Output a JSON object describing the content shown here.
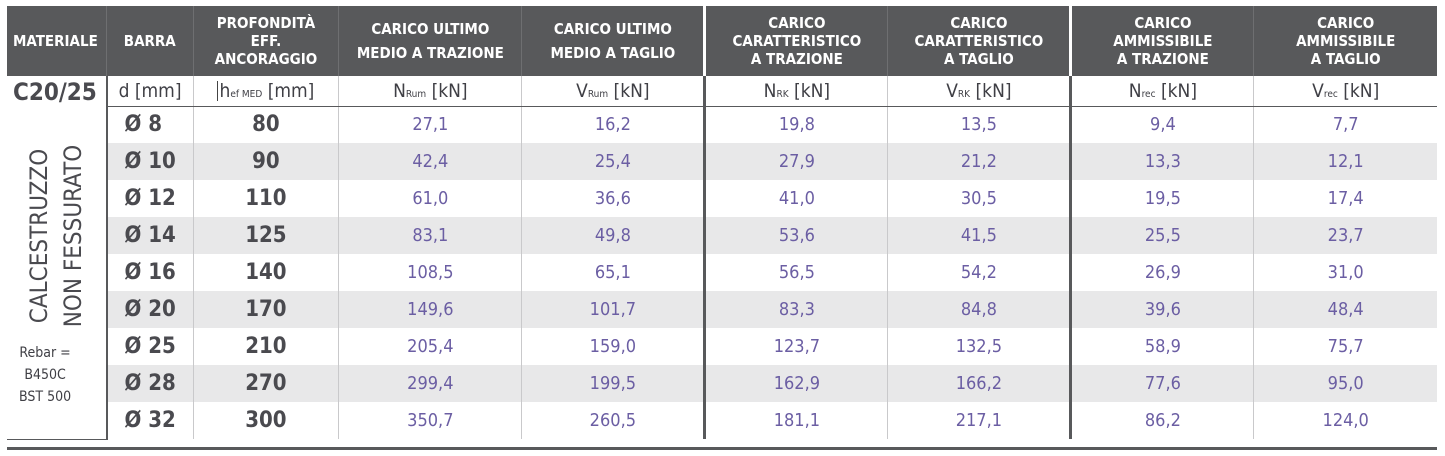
{
  "headers": {
    "materiale": "MATERIALE",
    "barra": "BARRA",
    "profondita": [
      "PROFONDITÀ",
      "EFF. ANCORAGGIO"
    ],
    "nrum": [
      "CARICO ULTIMO",
      "MEDIO A TRAZIONE"
    ],
    "vrum": [
      "CARICO ULTIMO",
      "MEDIO A TAGLIO"
    ],
    "nrk": [
      "CARICO",
      "CARATTERISTICO",
      "A TRAZIONE"
    ],
    "vrk": [
      "CARICO",
      "CARATTERISTICO",
      "A TAGLIO"
    ],
    "nrec": [
      "CARICO",
      "AMMISSIBILE",
      "A TRAZIONE"
    ],
    "vrec": [
      "CARICO",
      "AMMISSIBILE",
      "A TAGLIO"
    ]
  },
  "units": {
    "barra": "d [mm]",
    "prof": {
      "main": "h",
      "sub": "ef MED",
      "unit": " [mm]"
    },
    "nrum": {
      "main": "N",
      "sub": "Rum",
      "unit": " [kN]"
    },
    "vrum": {
      "main": "V",
      "sub": "Rum",
      "unit": " [kN]"
    },
    "nrk": {
      "main": "N",
      "sub": "RK",
      "unit": " [kN]"
    },
    "vrk": {
      "main": "V",
      "sub": "RK",
      "unit": " [kN]"
    },
    "nrec": {
      "main": "N",
      "sub": "rec",
      "unit": " [kN]"
    },
    "vrec": {
      "main": "V",
      "sub": "rec",
      "unit": " [kN]"
    }
  },
  "material": {
    "class": "C20/25",
    "vertical": [
      "CALCESTRUZZO",
      "NON FESSURATO"
    ],
    "rebar": [
      "Rebar =",
      "B450C",
      "BST 500"
    ]
  },
  "rows": [
    {
      "bar": "Ø 8",
      "prof": "80",
      "nrum": "27,1",
      "vrum": "16,2",
      "nrk": "19,8",
      "vrk": "13,5",
      "nrec": "9,4",
      "vrec": "7,7"
    },
    {
      "bar": "Ø 10",
      "prof": "90",
      "nrum": "42,4",
      "vrum": "25,4",
      "nrk": "27,9",
      "vrk": "21,2",
      "nrec": "13,3",
      "vrec": "12,1"
    },
    {
      "bar": "Ø 12",
      "prof": "110",
      "nrum": "61,0",
      "vrum": "36,6",
      "nrk": "41,0",
      "vrk": "30,5",
      "nrec": "19,5",
      "vrec": "17,4"
    },
    {
      "bar": "Ø 14",
      "prof": "125",
      "nrum": "83,1",
      "vrum": "49,8",
      "nrk": "53,6",
      "vrk": "41,5",
      "nrec": "25,5",
      "vrec": "23,7"
    },
    {
      "bar": "Ø 16",
      "prof": "140",
      "nrum": "108,5",
      "vrum": "65,1",
      "nrk": "56,5",
      "vrk": "54,2",
      "nrec": "26,9",
      "vrec": "31,0"
    },
    {
      "bar": "Ø 20",
      "prof": "170",
      "nrum": "149,6",
      "vrum": "101,7",
      "nrk": "83,3",
      "vrk": "84,8",
      "nrec": "39,6",
      "vrec": "48,4"
    },
    {
      "bar": "Ø 25",
      "prof": "210",
      "nrum": "205,4",
      "vrum": "159,0",
      "nrk": "123,7",
      "vrk": "132,5",
      "nrec": "58,9",
      "vrec": "75,7"
    },
    {
      "bar": "Ø 28",
      "prof": "270",
      "nrum": "299,4",
      "vrum": "199,5",
      "nrk": "162,9",
      "vrk": "166,2",
      "nrec": "77,6",
      "vrec": "95,0"
    },
    {
      "bar": "Ø 32",
      "prof": "300",
      "nrum": "350,7",
      "vrum": "260,5",
      "nrk": "181,1",
      "vrk": "217,1",
      "nrec": "86,2",
      "vrec": "124,0"
    }
  ]
}
